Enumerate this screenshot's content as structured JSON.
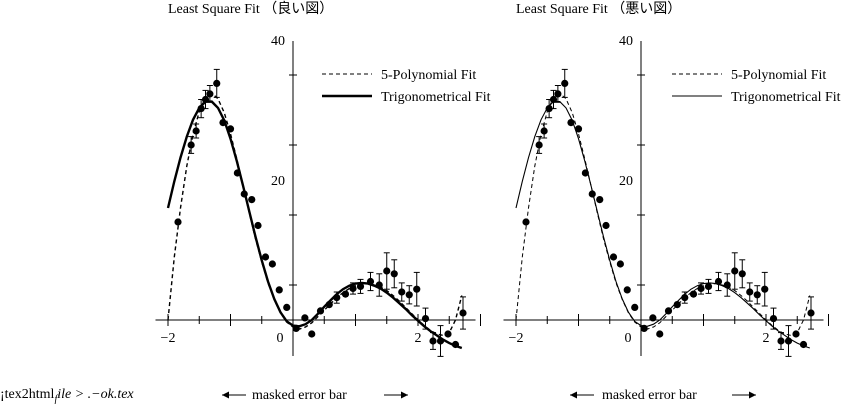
{
  "footer": {
    "source_note": "¡tex2html",
    "source_note_sub": "f",
    "source_note_tail": "ile > .−ok.tex"
  },
  "chart_data": [
    {
      "type": "scatter",
      "title": "Least Square Fit （良い図）",
      "xlabel": "",
      "ylabel": "",
      "xlim": [
        -2.2,
        2.6
      ],
      "ylim": [
        -5,
        40
      ],
      "x_ticks": [
        -2,
        0,
        2
      ],
      "y_ticks": [
        20,
        40
      ],
      "grid": false,
      "legend_position": "top-right",
      "caption": "masked error bar",
      "line_weight": "bold",
      "points": [
        {
          "x": -1.84,
          "y": 14.0,
          "err": 0
        },
        {
          "x": -1.63,
          "y": 25.0,
          "err": 1.2
        },
        {
          "x": -1.55,
          "y": 27.0,
          "err": 1.0
        },
        {
          "x": -1.47,
          "y": 30.2,
          "err": 1.3
        },
        {
          "x": -1.4,
          "y": 31.5,
          "err": 1.3
        },
        {
          "x": -1.33,
          "y": 32.3,
          "err": 1.2
        },
        {
          "x": -1.22,
          "y": 33.8,
          "err": 2.0
        },
        {
          "x": -1.12,
          "y": 28.2,
          "err": 0
        },
        {
          "x": -1.0,
          "y": 27.3,
          "err": 0
        },
        {
          "x": -0.89,
          "y": 21.0,
          "err": 0
        },
        {
          "x": -0.78,
          "y": 18.0,
          "err": 0
        },
        {
          "x": -0.66,
          "y": 17.2,
          "err": 0
        },
        {
          "x": -0.56,
          "y": 13.5,
          "err": 0
        },
        {
          "x": -0.44,
          "y": 9.0,
          "err": 0
        },
        {
          "x": -0.33,
          "y": 8.0,
          "err": 0
        },
        {
          "x": -0.22,
          "y": 4.3,
          "err": 0
        },
        {
          "x": -0.1,
          "y": 1.8,
          "err": 0
        },
        {
          "x": 0.05,
          "y": -1.2,
          "err": 0
        },
        {
          "x": 0.19,
          "y": 0.3,
          "err": 0
        },
        {
          "x": 0.3,
          "y": -2.0,
          "err": 0
        },
        {
          "x": 0.44,
          "y": 1.3,
          "err": 0
        },
        {
          "x": 0.58,
          "y": 2.2,
          "err": 0
        },
        {
          "x": 0.7,
          "y": 3.2,
          "err": 0.8
        },
        {
          "x": 0.84,
          "y": 3.7,
          "err": 0
        },
        {
          "x": 0.96,
          "y": 4.5,
          "err": 0.8
        },
        {
          "x": 1.08,
          "y": 4.8,
          "err": 1.0
        },
        {
          "x": 1.24,
          "y": 5.5,
          "err": 1.3
        },
        {
          "x": 1.38,
          "y": 5.0,
          "err": 1.6
        },
        {
          "x": 1.5,
          "y": 7.0,
          "err": 2.6
        },
        {
          "x": 1.62,
          "y": 6.6,
          "err": 2.0
        },
        {
          "x": 1.74,
          "y": 4.0,
          "err": 1.3
        },
        {
          "x": 1.86,
          "y": 3.6,
          "err": 1.3
        },
        {
          "x": 1.98,
          "y": 4.4,
          "err": 2.4
        },
        {
          "x": 2.12,
          "y": 0.2,
          "err": 1.5
        },
        {
          "x": 2.24,
          "y": -3.0,
          "err": 1.2
        },
        {
          "x": 2.36,
          "y": -3.0,
          "err": 2.2
        },
        {
          "x": 2.48,
          "y": -2.0,
          "err": 0
        },
        {
          "x": 2.6,
          "y": -3.5,
          "err": 0
        },
        {
          "x": 2.72,
          "y": 1.0,
          "err": 2.3
        }
      ],
      "series": [
        {
          "name": "5-Polynomial Fit",
          "style": "dashed",
          "x": [
            -2.0,
            -1.9,
            -1.8,
            -1.7,
            -1.6,
            -1.5,
            -1.4,
            -1.3,
            -1.2,
            -1.1,
            -1.0,
            -0.9,
            -0.8,
            -0.7,
            -0.6,
            -0.5,
            -0.4,
            -0.3,
            -0.2,
            -0.1,
            0.0,
            0.1,
            0.2,
            0.3,
            0.4,
            0.5,
            0.6,
            0.7,
            0.8,
            0.9,
            1.0,
            1.1,
            1.2,
            1.3,
            1.4,
            1.5,
            1.6,
            1.7,
            1.8,
            1.9,
            2.0,
            2.1,
            2.2,
            2.3,
            2.4,
            2.5,
            2.6,
            2.7
          ],
          "y": [
            0.0,
            9.0,
            16.0,
            22.0,
            26.5,
            29.8,
            31.8,
            32.4,
            31.6,
            29.6,
            26.6,
            23.0,
            19.2,
            15.3,
            11.6,
            8.3,
            5.3,
            2.9,
            1.0,
            -0.3,
            -1.0,
            -1.3,
            -1.0,
            -0.4,
            0.5,
            1.4,
            2.3,
            3.2,
            3.9,
            4.5,
            4.9,
            5.1,
            5.2,
            5.0,
            4.7,
            4.2,
            3.5,
            2.7,
            1.8,
            0.9,
            0.0,
            -0.8,
            -1.5,
            -2.0,
            -2.2,
            -1.8,
            0.0,
            3.5
          ]
        },
        {
          "name": "Trigonometrical Fit",
          "style": "solid",
          "x": [
            -2.0,
            -1.9,
            -1.8,
            -1.7,
            -1.6,
            -1.5,
            -1.4,
            -1.3,
            -1.2,
            -1.1,
            -1.0,
            -0.9,
            -0.8,
            -0.7,
            -0.6,
            -0.5,
            -0.4,
            -0.3,
            -0.2,
            -0.1,
            0.0,
            0.1,
            0.2,
            0.3,
            0.4,
            0.5,
            0.6,
            0.7,
            0.8,
            0.9,
            1.0,
            1.1,
            1.2,
            1.3,
            1.4,
            1.5,
            1.6,
            1.7,
            1.8,
            1.9,
            2.0,
            2.1,
            2.2,
            2.3,
            2.4,
            2.5,
            2.6,
            2.7
          ],
          "y": [
            16.0,
            19.8,
            23.2,
            26.2,
            28.6,
            30.3,
            31.2,
            31.2,
            30.3,
            28.5,
            25.9,
            22.7,
            19.2,
            15.5,
            11.9,
            8.5,
            5.5,
            3.0,
            1.1,
            -0.2,
            -0.8,
            -0.9,
            -0.6,
            0.0,
            0.9,
            1.9,
            2.8,
            3.7,
            4.4,
            4.9,
            5.2,
            5.3,
            5.2,
            4.9,
            4.5,
            3.9,
            3.2,
            2.4,
            1.6,
            0.7,
            -0.1,
            -0.9,
            -1.6,
            -2.2,
            -2.8,
            -3.3,
            -3.7,
            -4.0
          ]
        }
      ]
    },
    {
      "type": "scatter",
      "title": "Least Square Fit （悪い図）",
      "xlabel": "",
      "ylabel": "",
      "xlim": [
        -2.2,
        2.6
      ],
      "ylim": [
        -5,
        40
      ],
      "x_ticks": [
        -2,
        0,
        2
      ],
      "y_ticks": [
        20,
        40
      ],
      "grid": false,
      "legend_position": "top-right",
      "caption": "masked error bar",
      "line_weight": "thin",
      "points": [
        {
          "x": -1.84,
          "y": 14.0,
          "err": 0
        },
        {
          "x": -1.63,
          "y": 25.0,
          "err": 1.2
        },
        {
          "x": -1.55,
          "y": 27.0,
          "err": 1.0
        },
        {
          "x": -1.47,
          "y": 30.2,
          "err": 1.3
        },
        {
          "x": -1.4,
          "y": 31.5,
          "err": 1.3
        },
        {
          "x": -1.33,
          "y": 32.3,
          "err": 1.2
        },
        {
          "x": -1.22,
          "y": 33.8,
          "err": 2.0
        },
        {
          "x": -1.12,
          "y": 28.2,
          "err": 0
        },
        {
          "x": -1.0,
          "y": 27.3,
          "err": 0
        },
        {
          "x": -0.89,
          "y": 21.0,
          "err": 0
        },
        {
          "x": -0.78,
          "y": 18.0,
          "err": 0
        },
        {
          "x": -0.66,
          "y": 17.2,
          "err": 0
        },
        {
          "x": -0.56,
          "y": 13.5,
          "err": 0
        },
        {
          "x": -0.44,
          "y": 9.0,
          "err": 0
        },
        {
          "x": -0.33,
          "y": 8.0,
          "err": 0
        },
        {
          "x": -0.22,
          "y": 4.3,
          "err": 0
        },
        {
          "x": -0.1,
          "y": 1.8,
          "err": 0
        },
        {
          "x": 0.05,
          "y": -1.2,
          "err": 0
        },
        {
          "x": 0.19,
          "y": 0.3,
          "err": 0
        },
        {
          "x": 0.3,
          "y": -2.0,
          "err": 0
        },
        {
          "x": 0.44,
          "y": 1.3,
          "err": 0
        },
        {
          "x": 0.58,
          "y": 2.2,
          "err": 0
        },
        {
          "x": 0.7,
          "y": 3.2,
          "err": 0.8
        },
        {
          "x": 0.84,
          "y": 3.7,
          "err": 0
        },
        {
          "x": 0.96,
          "y": 4.5,
          "err": 0.8
        },
        {
          "x": 1.08,
          "y": 4.8,
          "err": 1.0
        },
        {
          "x": 1.24,
          "y": 5.5,
          "err": 1.3
        },
        {
          "x": 1.38,
          "y": 5.0,
          "err": 1.6
        },
        {
          "x": 1.5,
          "y": 7.0,
          "err": 2.6
        },
        {
          "x": 1.62,
          "y": 6.6,
          "err": 2.0
        },
        {
          "x": 1.74,
          "y": 4.0,
          "err": 1.3
        },
        {
          "x": 1.86,
          "y": 3.6,
          "err": 1.3
        },
        {
          "x": 1.98,
          "y": 4.4,
          "err": 2.4
        },
        {
          "x": 2.12,
          "y": 0.2,
          "err": 1.5
        },
        {
          "x": 2.24,
          "y": -3.0,
          "err": 1.2
        },
        {
          "x": 2.36,
          "y": -3.0,
          "err": 2.2
        },
        {
          "x": 2.48,
          "y": -2.0,
          "err": 0
        },
        {
          "x": 2.6,
          "y": -3.5,
          "err": 0
        },
        {
          "x": 2.72,
          "y": 1.0,
          "err": 2.3
        }
      ],
      "series": [
        {
          "name": "5-Polynomial Fit",
          "style": "dashed",
          "x": [
            -2.0,
            -1.9,
            -1.8,
            -1.7,
            -1.6,
            -1.5,
            -1.4,
            -1.3,
            -1.2,
            -1.1,
            -1.0,
            -0.9,
            -0.8,
            -0.7,
            -0.6,
            -0.5,
            -0.4,
            -0.3,
            -0.2,
            -0.1,
            0.0,
            0.1,
            0.2,
            0.3,
            0.4,
            0.5,
            0.6,
            0.7,
            0.8,
            0.9,
            1.0,
            1.1,
            1.2,
            1.3,
            1.4,
            1.5,
            1.6,
            1.7,
            1.8,
            1.9,
            2.0,
            2.1,
            2.2,
            2.3,
            2.4,
            2.5,
            2.6,
            2.7
          ],
          "y": [
            0.0,
            9.0,
            16.0,
            22.0,
            26.5,
            29.8,
            31.8,
            32.4,
            31.6,
            29.6,
            26.6,
            23.0,
            19.2,
            15.3,
            11.6,
            8.3,
            5.3,
            2.9,
            1.0,
            -0.3,
            -1.0,
            -1.3,
            -1.0,
            -0.4,
            0.5,
            1.4,
            2.3,
            3.2,
            3.9,
            4.5,
            4.9,
            5.1,
            5.2,
            5.0,
            4.7,
            4.2,
            3.5,
            2.7,
            1.8,
            0.9,
            0.0,
            -0.8,
            -1.5,
            -2.0,
            -2.2,
            -1.8,
            0.0,
            3.5
          ]
        },
        {
          "name": "Trigonometrical Fit",
          "style": "solid",
          "x": [
            -2.0,
            -1.9,
            -1.8,
            -1.7,
            -1.6,
            -1.5,
            -1.4,
            -1.3,
            -1.2,
            -1.1,
            -1.0,
            -0.9,
            -0.8,
            -0.7,
            -0.6,
            -0.5,
            -0.4,
            -0.3,
            -0.2,
            -0.1,
            0.0,
            0.1,
            0.2,
            0.3,
            0.4,
            0.5,
            0.6,
            0.7,
            0.8,
            0.9,
            1.0,
            1.1,
            1.2,
            1.3,
            1.4,
            1.5,
            1.6,
            1.7,
            1.8,
            1.9,
            2.0,
            2.1,
            2.2,
            2.3,
            2.4,
            2.5,
            2.6,
            2.7
          ],
          "y": [
            16.0,
            19.8,
            23.2,
            26.2,
            28.6,
            30.3,
            31.2,
            31.2,
            30.3,
            28.5,
            25.9,
            22.7,
            19.2,
            15.5,
            11.9,
            8.5,
            5.5,
            3.0,
            1.1,
            -0.2,
            -0.8,
            -0.9,
            -0.6,
            0.0,
            0.9,
            1.9,
            2.8,
            3.7,
            4.4,
            4.9,
            5.2,
            5.3,
            5.2,
            4.9,
            4.5,
            3.9,
            3.2,
            2.4,
            1.6,
            0.7,
            -0.1,
            -0.9,
            -1.6,
            -2.2,
            -2.8,
            -3.3,
            -3.7,
            -4.0
          ]
        }
      ]
    }
  ]
}
